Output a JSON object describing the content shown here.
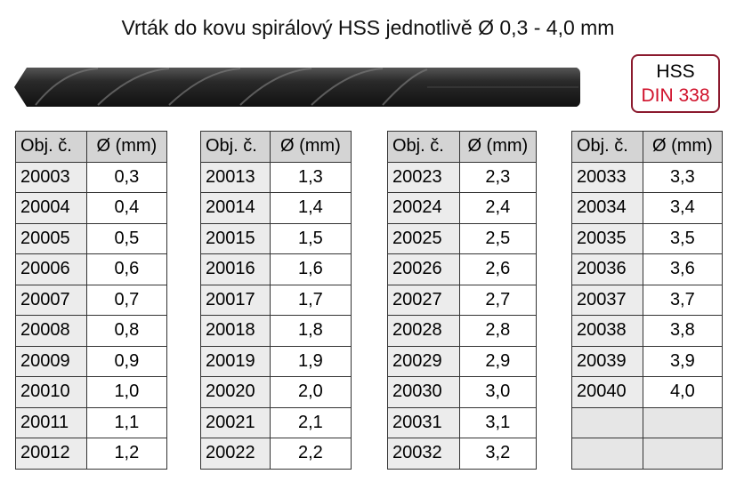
{
  "header": {
    "title": "Vrták do kovu spirálový HSS jednotlivě Ø 0,3 - 4,0 mm"
  },
  "badge": {
    "line1": "HSS",
    "line2": "DIN 338"
  },
  "tables": [
    {
      "header": [
        "Obj. č.",
        "Ø (mm)"
      ],
      "rows": [
        [
          "20003",
          "0,3"
        ],
        [
          "20004",
          "0,4"
        ],
        [
          "20005",
          "0,5"
        ],
        [
          "20006",
          "0,6"
        ],
        [
          "20007",
          "0,7"
        ],
        [
          "20008",
          "0,8"
        ],
        [
          "20009",
          "0,9"
        ],
        [
          "20010",
          "1,0"
        ],
        [
          "20011",
          "1,1"
        ],
        [
          "20012",
          "1,2"
        ]
      ]
    },
    {
      "header": [
        "Obj. č.",
        "Ø (mm)"
      ],
      "rows": [
        [
          "20013",
          "1,3"
        ],
        [
          "20014",
          "1,4"
        ],
        [
          "20015",
          "1,5"
        ],
        [
          "20016",
          "1,6"
        ],
        [
          "20017",
          "1,7"
        ],
        [
          "20018",
          "1,8"
        ],
        [
          "20019",
          "1,9"
        ],
        [
          "20020",
          "2,0"
        ],
        [
          "20021",
          "2,1"
        ],
        [
          "20022",
          "2,2"
        ]
      ]
    },
    {
      "header": [
        "Obj. č.",
        "Ø (mm)"
      ],
      "rows": [
        [
          "20023",
          "2,3"
        ],
        [
          "20024",
          "2,4"
        ],
        [
          "20025",
          "2,5"
        ],
        [
          "20026",
          "2,6"
        ],
        [
          "20027",
          "2,7"
        ],
        [
          "20028",
          "2,8"
        ],
        [
          "20029",
          "2,9"
        ],
        [
          "20030",
          "3,0"
        ],
        [
          "20031",
          "3,1"
        ],
        [
          "20032",
          "3,2"
        ]
      ]
    },
    {
      "header": [
        "Obj. č.",
        "Ø (mm)"
      ],
      "rows": [
        [
          "20033",
          "3,3"
        ],
        [
          "20034",
          "3,4"
        ],
        [
          "20035",
          "3,5"
        ],
        [
          "20036",
          "3,6"
        ],
        [
          "20037",
          "3,7"
        ],
        [
          "20038",
          "3,8"
        ],
        [
          "20039",
          "3,9"
        ],
        [
          "20040",
          "4,0"
        ]
      ]
    }
  ]
}
